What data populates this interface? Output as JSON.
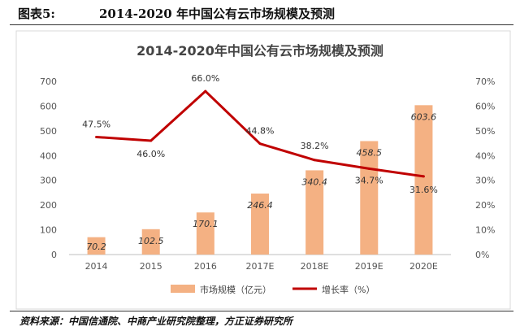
{
  "figure": {
    "caption_label": "图表5:",
    "caption_title": "2014-2020 年中国公有云市场规模及预测",
    "source": "资料来源：中国信通院、中商产业研究院整理，方正证券研究所"
  },
  "chart_data": {
    "type": "bar",
    "title": "2014-2020年中国公有云市场规模及预测",
    "categories": [
      "2014",
      "2015",
      "2016",
      "2017E",
      "2018E",
      "2019E",
      "2020E"
    ],
    "series": [
      {
        "name": "市场规模（亿元）",
        "type": "bar",
        "axis": "left",
        "values": [
          70.2,
          102.5,
          170.1,
          246.4,
          340.4,
          458.5,
          603.6
        ],
        "labels": [
          "70.2",
          "102.5",
          "170.1",
          "246.4",
          "340.4",
          "458.5",
          "603.6"
        ],
        "color": "#f4b183"
      },
      {
        "name": "增长率（%）",
        "type": "line",
        "axis": "right",
        "values": [
          47.5,
          46.0,
          66.0,
          44.8,
          38.2,
          34.7,
          31.6
        ],
        "labels": [
          "47.5%",
          "46.0%",
          "66.0%",
          "44.8%",
          "38.2%",
          "34.7%",
          "31.6%"
        ],
        "color": "#c00000"
      }
    ],
    "y_left": {
      "ylim": [
        0,
        700
      ],
      "ticks": [
        "0",
        "100",
        "200",
        "300",
        "400",
        "500",
        "600",
        "700"
      ]
    },
    "y_right": {
      "ylim": [
        0,
        70
      ],
      "ticks": [
        "0%",
        "10%",
        "20%",
        "30%",
        "40%",
        "50%",
        "60%",
        "70%"
      ]
    },
    "grid": false,
    "legend_position": "bottom"
  }
}
